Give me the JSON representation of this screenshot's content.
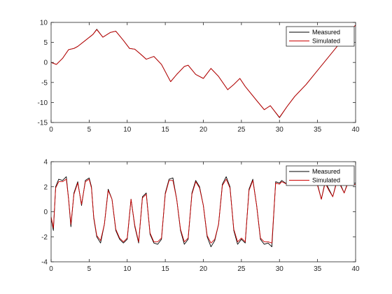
{
  "colors": {
    "measured": "#000000",
    "simulated": "#cc0000",
    "axis": "#262626",
    "background": "#ffffff"
  },
  "chart_data": [
    {
      "type": "line",
      "title": "",
      "xlabel": "",
      "ylabel": "",
      "xlim": [
        0,
        40
      ],
      "ylim": [
        -15,
        10
      ],
      "xticks": [
        0,
        5,
        10,
        15,
        20,
        25,
        30,
        35,
        40
      ],
      "yticks": [
        -15,
        -10,
        -5,
        0,
        5,
        10
      ],
      "grid": false,
      "legend": {
        "placement": "top-right",
        "entries": [
          "Measured",
          "Simulated"
        ]
      },
      "series": [
        {
          "name": "Measured",
          "color": "#000000",
          "x": [
            0,
            0.7,
            1.5,
            2.3,
            3.0,
            3.5,
            4.5,
            5.5,
            6.0,
            6.8,
            7.8,
            8.5,
            9.5,
            10.3,
            11.0,
            11.8,
            12.5,
            13.5,
            14.5,
            15.7,
            16.5,
            17.5,
            18.0,
            19.0,
            20.0,
            21.0,
            22.0,
            23.2,
            24.0,
            24.8,
            25.5,
            27.0,
            28.0,
            28.8,
            30.0,
            31.0,
            32.0,
            33.5,
            35.0,
            36.5,
            38.0,
            39.0,
            40.0
          ],
          "y": [
            0,
            -0.5,
            1.0,
            3.2,
            3.5,
            4.0,
            5.5,
            7.0,
            8.3,
            6.3,
            7.5,
            7.8,
            5.5,
            3.5,
            3.3,
            2.0,
            0.8,
            1.5,
            -0.5,
            -4.8,
            -3.0,
            -1.0,
            -0.7,
            -3.0,
            -4.0,
            -1.5,
            -3.5,
            -6.8,
            -5.5,
            -4.0,
            -6.0,
            -9.5,
            -11.8,
            -10.8,
            -13.8,
            -11.0,
            -8.5,
            -5.5,
            -2.0,
            1.5,
            5.0,
            7.5,
            9.3
          ]
        },
        {
          "name": "Simulated",
          "color": "#cc0000",
          "x": [
            0,
            0.7,
            1.5,
            2.3,
            3.0,
            3.5,
            4.5,
            5.5,
            6.0,
            6.8,
            7.8,
            8.5,
            9.5,
            10.3,
            11.0,
            11.8,
            12.5,
            13.5,
            14.5,
            15.7,
            16.5,
            17.5,
            18.0,
            19.0,
            20.0,
            21.0,
            22.0,
            23.2,
            24.0,
            24.8,
            25.5,
            27.0,
            28.0,
            28.8,
            30.0,
            31.0,
            32.0,
            33.5,
            35.0,
            36.5,
            38.0,
            39.0,
            40.0
          ],
          "y": [
            0,
            -0.5,
            1.0,
            3.2,
            3.5,
            4.0,
            5.5,
            7.0,
            8.2,
            6.3,
            7.5,
            7.8,
            5.5,
            3.5,
            3.3,
            2.0,
            0.8,
            1.5,
            -0.5,
            -4.8,
            -3.0,
            -1.0,
            -0.7,
            -3.0,
            -4.0,
            -1.5,
            -3.5,
            -6.8,
            -5.5,
            -4.0,
            -6.0,
            -9.5,
            -11.8,
            -10.8,
            -13.7,
            -11.0,
            -8.5,
            -5.5,
            -2.0,
            1.5,
            5.0,
            7.5,
            9.3
          ]
        }
      ]
    },
    {
      "type": "line",
      "title": "",
      "xlabel": "",
      "ylabel": "",
      "xlim": [
        0,
        40
      ],
      "ylim": [
        -4,
        4
      ],
      "xticks": [
        0,
        5,
        10,
        15,
        20,
        25,
        30,
        35,
        40
      ],
      "yticks": [
        -4,
        -2,
        0,
        2,
        4
      ],
      "grid": false,
      "legend": {
        "placement": "top-right",
        "entries": [
          "Measured",
          "Simulated"
        ]
      },
      "series": [
        {
          "name": "Measured",
          "color": "#000000",
          "x": [
            0,
            0.3,
            0.6,
            1.0,
            1.5,
            2.0,
            2.3,
            2.6,
            3.0,
            3.5,
            4.0,
            4.5,
            5.0,
            5.3,
            5.6,
            6.0,
            6.5,
            7.0,
            7.5,
            8.0,
            8.5,
            9.0,
            9.5,
            10.0,
            10.5,
            11.0,
            11.5,
            12.0,
            12.5,
            13.0,
            13.5,
            14.0,
            14.5,
            15.0,
            15.5,
            16.0,
            16.5,
            17.0,
            17.5,
            18.0,
            18.5,
            19.0,
            19.5,
            20.0,
            20.5,
            21.0,
            21.5,
            22.0,
            22.5,
            23.0,
            23.5,
            24.0,
            24.5,
            25.0,
            25.5,
            26.0,
            26.5,
            27.0,
            27.5,
            28.0,
            28.5,
            29.0,
            29.5,
            30.0,
            30.3,
            31.0,
            32.0,
            33.0,
            34.0,
            35.0,
            35.5,
            36.0,
            36.5,
            37.0,
            37.5,
            38.0,
            38.5,
            39.0,
            39.5,
            40.0
          ],
          "y": [
            -0.5,
            -1.5,
            2.0,
            2.6,
            2.5,
            2.8,
            1.0,
            -1.2,
            1.5,
            2.4,
            0.5,
            2.5,
            2.7,
            2.0,
            -0.5,
            -2.0,
            -2.5,
            -1.0,
            1.8,
            1.0,
            -1.5,
            -2.2,
            -2.5,
            -2.2,
            1.0,
            -1.2,
            -2.5,
            1.2,
            1.5,
            -1.8,
            -2.5,
            -2.6,
            -2.2,
            1.5,
            2.6,
            2.7,
            1.0,
            -1.5,
            -2.6,
            -2.2,
            1.5,
            2.5,
            2.0,
            0.5,
            -2.0,
            -2.8,
            -2.3,
            -1.0,
            2.2,
            2.8,
            2.0,
            -1.5,
            -2.6,
            -2.2,
            -2.5,
            1.8,
            2.6,
            0.5,
            -2.2,
            -2.6,
            -2.5,
            -2.8,
            2.4,
            2.3,
            2.5,
            2.2,
            2.5,
            2.4,
            2.3,
            2.2,
            1.0,
            2.4,
            1.8,
            1.2,
            2.4,
            2.2,
            1.5,
            2.4,
            2.2,
            2.3
          ]
        },
        {
          "name": "Simulated",
          "color": "#cc0000",
          "x": [
            0,
            0.3,
            0.6,
            1.0,
            1.5,
            2.0,
            2.3,
            2.6,
            3.0,
            3.5,
            4.0,
            4.5,
            5.0,
            5.3,
            5.6,
            6.0,
            6.5,
            7.0,
            7.5,
            8.0,
            8.5,
            9.0,
            9.5,
            10.0,
            10.5,
            11.0,
            11.5,
            12.0,
            12.5,
            13.0,
            13.5,
            14.0,
            14.5,
            15.0,
            15.5,
            16.0,
            16.5,
            17.0,
            17.5,
            18.0,
            18.5,
            19.0,
            19.5,
            20.0,
            20.5,
            21.0,
            21.5,
            22.0,
            22.5,
            23.0,
            23.5,
            24.0,
            24.5,
            25.0,
            25.5,
            26.0,
            26.5,
            27.0,
            27.5,
            28.0,
            28.5,
            29.0,
            29.5,
            30.0,
            30.3,
            31.0,
            32.0,
            33.0,
            34.0,
            35.0,
            35.5,
            36.0,
            36.5,
            37.0,
            37.5,
            38.0,
            38.5,
            39.0,
            39.5,
            40.0
          ],
          "y": [
            -0.4,
            -1.3,
            1.9,
            2.4,
            2.4,
            2.6,
            1.0,
            -1.0,
            1.4,
            2.3,
            0.6,
            2.4,
            2.6,
            1.9,
            -0.4,
            -1.9,
            -2.3,
            -1.0,
            1.7,
            1.0,
            -1.4,
            -2.1,
            -2.4,
            -2.1,
            1.0,
            -1.1,
            -2.4,
            1.1,
            1.4,
            -1.7,
            -2.4,
            -2.4,
            -2.1,
            1.4,
            2.5,
            2.5,
            1.0,
            -1.4,
            -2.4,
            -2.1,
            1.4,
            2.4,
            1.9,
            0.5,
            -1.9,
            -2.5,
            -2.2,
            -1.0,
            2.1,
            2.6,
            1.9,
            -1.4,
            -2.4,
            -2.1,
            -2.4,
            1.7,
            2.5,
            0.5,
            -2.1,
            -2.4,
            -2.4,
            -2.5,
            2.3,
            2.2,
            2.4,
            2.2,
            2.4,
            2.3,
            2.2,
            2.1,
            1.0,
            2.3,
            1.7,
            1.2,
            2.3,
            2.1,
            1.5,
            2.3,
            2.1,
            2.2
          ]
        }
      ]
    }
  ]
}
